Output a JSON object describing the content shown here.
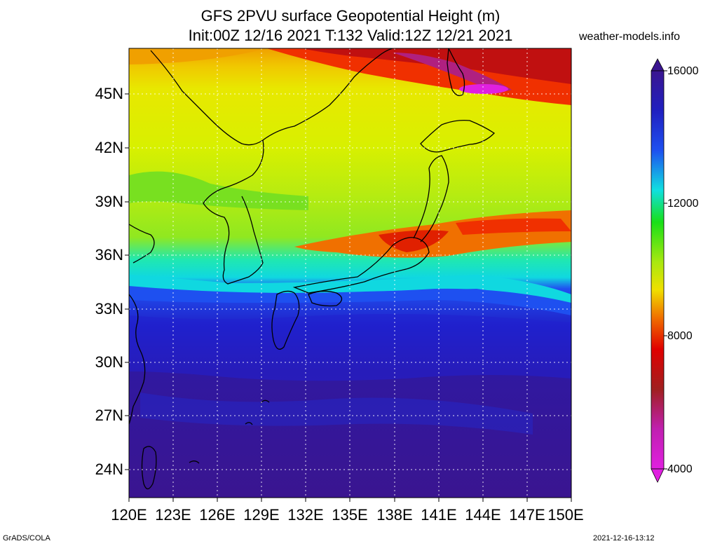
{
  "title": {
    "line1": "GFS 2PVU surface Geopotential Height (m)",
    "line2": "Init:00Z 12/16 2021 T:132 Valid:12Z 12/21 2021"
  },
  "site_label": "weather-models.info",
  "lat_labels": [
    "45N",
    "42N",
    "39N",
    "36N",
    "33N",
    "30N",
    "27N",
    "24N"
  ],
  "lon_labels": [
    "120E",
    "123E",
    "126E",
    "129E",
    "132E",
    "135E",
    "138E",
    "141E",
    "144E",
    "147E",
    "150E"
  ],
  "colorbar": {
    "labels": [
      "16000",
      "12000",
      "8000",
      "4000"
    ],
    "colors_top_to_bottom": [
      "#3a1590",
      "#2a1aa0",
      "#2020c0",
      "#1e2ee0",
      "#1e50f0",
      "#2e80f0",
      "#1eb8f0",
      "#10e0e0",
      "#10e8a0",
      "#18e018",
      "#70e010",
      "#a8e810",
      "#d8f000",
      "#f0e000",
      "#f0a800",
      "#f07000",
      "#f03000",
      "#e00000",
      "#c01010",
      "#a02020",
      "#a02070",
      "#c020b0",
      "#e020e0"
    ]
  },
  "legend_items": [
    {
      "value": 4000,
      "color": "#e020e0"
    },
    {
      "value": 8000,
      "color": "#f07000"
    },
    {
      "value": 12000,
      "color": "#18e018"
    },
    {
      "value": 16000,
      "color": "#3a1590"
    }
  ],
  "footer_left": "GrADS/COLA",
  "footer_right": "2021-12-16-13:12"
}
